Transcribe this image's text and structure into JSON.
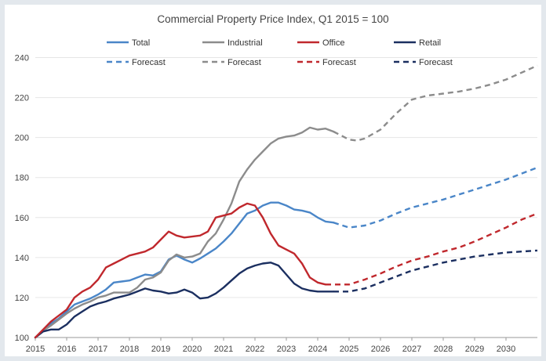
{
  "chart_data": {
    "type": "line",
    "title": "Commercial Property Price Index, Q1 2015 = 100",
    "xlabel": "",
    "ylabel": "",
    "xlim": [
      2015.0,
      2031.0
    ],
    "ylim": [
      100,
      250
    ],
    "x_ticks": [
      "2015",
      "2016",
      "2017",
      "2018",
      "2019",
      "2020",
      "2021",
      "2022",
      "2023",
      "2024",
      "2025",
      "2026",
      "2027",
      "2028",
      "2029",
      "2030"
    ],
    "y_ticks": [
      "100",
      "120",
      "140",
      "160",
      "180",
      "200",
      "220",
      "240"
    ],
    "grid": true,
    "legend_position": "top",
    "series": [
      {
        "name": "Total",
        "color": "#4a86c8",
        "dash": "solid",
        "x": [
          2015.0,
          2015.25,
          2015.5,
          2015.75,
          2016.0,
          2016.25,
          2016.5,
          2016.75,
          2017.0,
          2017.25,
          2017.5,
          2017.75,
          2018.0,
          2018.25,
          2018.5,
          2018.75,
          2019.0,
          2019.25,
          2019.5,
          2019.75,
          2020.0,
          2020.25,
          2020.5,
          2020.75,
          2021.0,
          2021.25,
          2021.5,
          2021.75,
          2022.0,
          2022.25,
          2022.5,
          2022.75,
          2023.0,
          2023.25,
          2023.5,
          2023.75,
          2024.0,
          2024.25,
          2024.5
        ],
        "values": [
          100,
          103.5,
          107,
          109.5,
          113,
          116.5,
          118,
          119.5,
          121.5,
          124,
          127.5,
          128,
          128.5,
          130,
          131.5,
          131,
          133,
          139,
          141,
          139,
          137.5,
          139.5,
          142,
          144.5,
          148,
          152,
          157,
          162,
          163.5,
          166,
          167.5,
          167.5,
          166,
          164,
          163.5,
          162.5,
          160,
          158,
          157.5
        ]
      },
      {
        "name": "Industrial",
        "color": "#8c8c8c",
        "dash": "solid",
        "x": [
          2015.0,
          2015.25,
          2015.5,
          2015.75,
          2016.0,
          2016.25,
          2016.5,
          2016.75,
          2017.0,
          2017.25,
          2017.5,
          2017.75,
          2018.0,
          2018.25,
          2018.5,
          2018.75,
          2019.0,
          2019.25,
          2019.5,
          2019.75,
          2020.0,
          2020.25,
          2020.5,
          2020.75,
          2021.0,
          2021.25,
          2021.5,
          2021.75,
          2022.0,
          2022.25,
          2022.5,
          2022.75,
          2023.0,
          2023.25,
          2023.5,
          2023.75,
          2024.0,
          2024.25,
          2024.5
        ],
        "values": [
          100,
          103.5,
          106,
          109,
          112,
          114.5,
          116.5,
          118,
          120,
          121,
          122.5,
          122.5,
          122.5,
          125,
          129,
          130,
          132.5,
          138.5,
          141.5,
          140,
          140.5,
          142,
          148,
          152,
          159,
          167,
          178,
          184,
          189,
          193,
          197,
          199.5,
          200.5,
          201,
          202.5,
          205,
          204,
          204.5,
          203
        ]
      },
      {
        "name": "Office",
        "color": "#c0282d",
        "dash": "solid",
        "x": [
          2015.0,
          2015.25,
          2015.5,
          2015.75,
          2016.0,
          2016.25,
          2016.5,
          2016.75,
          2017.0,
          2017.25,
          2017.5,
          2017.75,
          2018.0,
          2018.25,
          2018.5,
          2018.75,
          2019.0,
          2019.25,
          2019.5,
          2019.75,
          2020.0,
          2020.25,
          2020.5,
          2020.75,
          2021.0,
          2021.25,
          2021.5,
          2021.75,
          2022.0,
          2022.25,
          2022.5,
          2022.75,
          2023.0,
          2023.25,
          2023.5,
          2023.75,
          2024.0,
          2024.25
        ],
        "values": [
          100,
          104,
          108,
          111,
          114,
          120,
          123,
          125,
          129,
          135,
          137,
          139,
          141,
          142,
          143,
          145,
          149,
          153,
          151,
          150,
          150.5,
          151,
          153,
          160,
          161,
          162,
          165,
          167,
          166,
          160,
          152,
          146,
          144,
          142,
          137,
          130,
          127.5,
          126.5
        ]
      },
      {
        "name": "Retail",
        "color": "#1b2f60",
        "dash": "solid",
        "x": [
          2015.0,
          2015.25,
          2015.5,
          2015.75,
          2016.0,
          2016.25,
          2016.5,
          2016.75,
          2017.0,
          2017.25,
          2017.5,
          2017.75,
          2018.0,
          2018.25,
          2018.5,
          2018.75,
          2019.0,
          2019.25,
          2019.5,
          2019.75,
          2020.0,
          2020.25,
          2020.5,
          2020.75,
          2021.0,
          2021.25,
          2021.5,
          2021.75,
          2022.0,
          2022.25,
          2022.5,
          2022.75,
          2023.0,
          2023.25,
          2023.5,
          2023.75,
          2024.0,
          2024.25,
          2024.5
        ],
        "values": [
          100,
          103,
          104,
          104,
          106.5,
          110.5,
          113,
          115.5,
          117,
          118,
          119.5,
          120.5,
          121.5,
          123,
          124.5,
          123.5,
          123,
          122,
          122.5,
          124,
          122.5,
          119.5,
          120,
          122,
          125,
          128.5,
          132,
          134.5,
          136,
          137,
          137.5,
          136,
          131.5,
          127,
          124.5,
          123.5,
          123,
          123,
          123
        ]
      },
      {
        "name": "Forecast",
        "color": "#4a86c8",
        "dash": "dashed",
        "x": [
          2024.5,
          2025.0,
          2025.5,
          2026.0,
          2026.5,
          2027.0,
          2027.5,
          2028.0,
          2028.5,
          2029.0,
          2029.5,
          2030.0,
          2030.5,
          2031.0
        ],
        "values": [
          157.5,
          155,
          156,
          158.5,
          162,
          165,
          167,
          169,
          171.5,
          174,
          176.5,
          179,
          182,
          185
        ]
      },
      {
        "name": "Forecast",
        "color": "#8c8c8c",
        "dash": "dashed",
        "x": [
          2024.5,
          2025.0,
          2025.25,
          2025.5,
          2026.0,
          2026.5,
          2027.0,
          2027.5,
          2028.0,
          2028.5,
          2029.0,
          2029.5,
          2030.0,
          2030.5,
          2031.0
        ],
        "values": [
          203,
          199,
          198.5,
          199.5,
          204,
          212,
          219,
          221,
          222,
          223,
          224.5,
          226.5,
          229,
          232.5,
          236
        ]
      },
      {
        "name": "Forecast",
        "color": "#c0282d",
        "dash": "dashed",
        "x": [
          2024.25,
          2024.5,
          2025.0,
          2025.5,
          2026.0,
          2026.5,
          2027.0,
          2027.5,
          2028.0,
          2028.5,
          2029.0,
          2029.5,
          2030.0,
          2030.5,
          2031.0
        ],
        "values": [
          126.5,
          126.5,
          126.5,
          129,
          132,
          135.5,
          138.5,
          140.5,
          143,
          145,
          148,
          151.5,
          155,
          159,
          162
        ]
      },
      {
        "name": "Forecast",
        "color": "#1b2f60",
        "dash": "dashed",
        "x": [
          2024.5,
          2025.0,
          2025.5,
          2026.0,
          2026.5,
          2027.0,
          2027.5,
          2028.0,
          2028.5,
          2029.0,
          2029.5,
          2030.0,
          2030.5,
          2031.0
        ],
        "values": [
          123,
          123,
          124.5,
          127.5,
          130.5,
          133.5,
          135.5,
          137.5,
          139,
          140.5,
          141.5,
          142.5,
          143,
          143.5
        ]
      }
    ]
  }
}
